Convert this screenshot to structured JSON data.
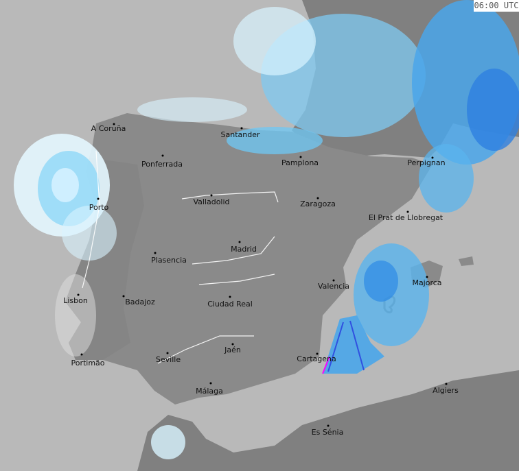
{
  "timestamp": "06:00 UTC",
  "colors": {
    "sea": "#b9b9b9",
    "land": "#8a8a8a",
    "land_dark": "#7e7e7e",
    "precip_light": "#d8f4ff",
    "precip_mid": "#6ec8f5",
    "precip_heavy": "#2e8ae6",
    "precip_intense": "#3050e0",
    "precip_extreme": "#ff00ff",
    "cloud_gray": "#d0d0d0",
    "rivers": "#ffffff"
  },
  "cities": [
    {
      "name": "A Coruña"
    },
    {
      "name": "Santander"
    },
    {
      "name": "Pamplona"
    },
    {
      "name": "Perpignan"
    },
    {
      "name": "Ponferrada"
    },
    {
      "name": "Porto"
    },
    {
      "name": "Valladolid"
    },
    {
      "name": "Zaragoza"
    },
    {
      "name": "El Prat de Llobregat"
    },
    {
      "name": "Madrid"
    },
    {
      "name": "Plasencia"
    },
    {
      "name": "Lisbon"
    },
    {
      "name": "Badajoz"
    },
    {
      "name": "Valencia"
    },
    {
      "name": "Majorca"
    },
    {
      "name": "Ciudad Real"
    },
    {
      "name": "Jaén"
    },
    {
      "name": "Seville"
    },
    {
      "name": "Cartagena"
    },
    {
      "name": "Portimão"
    },
    {
      "name": "Málaga"
    },
    {
      "name": "Algiers"
    },
    {
      "name": "Es Sénia"
    }
  ]
}
